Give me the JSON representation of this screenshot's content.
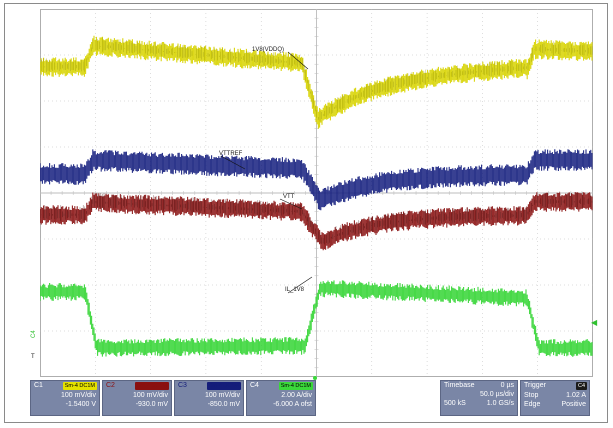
{
  "signals": {
    "vddq": "1V8(VDDQ)",
    "vttref": "VTTREF",
    "vtt": "VTT",
    "il": "IL_1V8"
  },
  "markers": {
    "c4_left": "C4",
    "c4_left_sub": "T",
    "trigger_arrow": "◀"
  },
  "channels": [
    {
      "id": "C1",
      "tag": "Sm-4 DC1M",
      "scale": "100 mV/div",
      "offset": "-1.5400 V",
      "color": "#e4e200"
    },
    {
      "id": "C2",
      "tag": "Sm-4 DC1M",
      "scale": "100 mV/div",
      "offset": "-930.0 mV",
      "color": "#8a1010"
    },
    {
      "id": "C3",
      "tag": "Sm-4 DC1M",
      "scale": "100 mV/div",
      "offset": "-850.0 mV",
      "color": "#141d7a"
    },
    {
      "id": "C4",
      "tag": "Sm-4 DC1M",
      "scale": "2.00 A/div",
      "offset": "-6.000 A ofst",
      "color": "#3ad83a"
    }
  ],
  "timebase": {
    "label": "Timebase",
    "delay": "0 µs",
    "scale": "50.0 µs/div",
    "samples": "500 kS",
    "rate": "1.0 GS/s"
  },
  "trigger": {
    "label": "Trigger",
    "channel": "C4",
    "mode_label": "Stop",
    "level": "1.02 A",
    "type_label": "Edge",
    "slope": "Positive"
  },
  "colors": {
    "vddq": "#d8d400",
    "vddq_dark": "#8b8a00",
    "vttref": "#16207e",
    "vtt": "#8b1414",
    "il": "#35d535",
    "grid": "#bcbcbc"
  }
}
